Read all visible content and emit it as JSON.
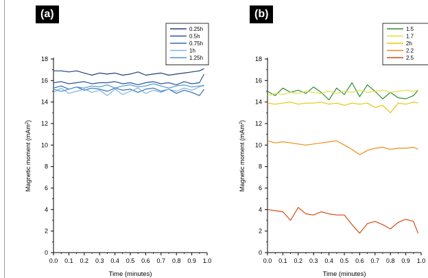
{
  "panels": [
    {
      "label": "(a)"
    },
    {
      "label": "(b)"
    }
  ],
  "chart_data": [
    {
      "type": "line",
      "title": "",
      "xlabel": "Time (minutes)",
      "ylabel": "Magnetic moment (mAm",
      "ylabel_sup": "2",
      "ylabel_close": ")",
      "xlim": [
        0,
        1.0
      ],
      "ylim": [
        0,
        18
      ],
      "xticks": [
        "0.0",
        "0.1",
        "0.2",
        "0.3",
        "0.4",
        "0.5",
        "0.6",
        "0.7",
        "0.8",
        "0.9",
        "1.0"
      ],
      "yticks": [
        "0",
        "2",
        "4",
        "6",
        "8",
        "10",
        "12",
        "14",
        "16",
        "18"
      ],
      "grid": false,
      "legend": "top-right",
      "series": [
        {
          "name": "0.25h",
          "color": "#1f3d7a",
          "x": [
            0,
            0.05,
            0.1,
            0.15,
            0.2,
            0.25,
            0.3,
            0.35,
            0.4,
            0.45,
            0.5,
            0.55,
            0.6,
            0.65,
            0.7,
            0.75,
            0.8,
            0.85,
            0.9,
            0.95,
            0.98
          ],
          "y": [
            16.9,
            16.9,
            16.8,
            16.9,
            16.7,
            16.5,
            16.7,
            16.6,
            16.7,
            16.5,
            16.6,
            16.8,
            16.5,
            16.6,
            16.7,
            16.5,
            16.6,
            16.7,
            16.8,
            16.9,
            17.1
          ]
        },
        {
          "name": "0.5h",
          "color": "#2a5592",
          "x": [
            0,
            0.05,
            0.1,
            0.15,
            0.2,
            0.25,
            0.3,
            0.35,
            0.4,
            0.45,
            0.5,
            0.55,
            0.6,
            0.65,
            0.7,
            0.75,
            0.8,
            0.85,
            0.9,
            0.95,
            0.98
          ],
          "y": [
            15.8,
            15.9,
            15.7,
            15.8,
            15.9,
            15.7,
            15.8,
            15.8,
            15.9,
            15.7,
            15.8,
            15.6,
            15.8,
            15.9,
            15.7,
            15.8,
            15.6,
            15.9,
            15.7,
            15.8,
            16.6
          ]
        },
        {
          "name": "0.75h",
          "color": "#2f6fb2",
          "x": [
            0,
            0.05,
            0.1,
            0.15,
            0.2,
            0.25,
            0.3,
            0.35,
            0.4,
            0.45,
            0.5,
            0.55,
            0.6,
            0.65,
            0.7,
            0.75,
            0.8,
            0.85,
            0.9,
            0.95,
            0.98
          ],
          "y": [
            15.3,
            15.5,
            15.2,
            15.4,
            15.1,
            15.3,
            15.2,
            15.0,
            15.3,
            15.1,
            15.2,
            14.9,
            15.2,
            15.3,
            15.0,
            15.2,
            14.8,
            15.1,
            14.9,
            14.6,
            15.2
          ]
        },
        {
          "name": "1h",
          "color": "#7fb2de",
          "x": [
            0,
            0.05,
            0.1,
            0.15,
            0.2,
            0.25,
            0.3,
            0.35,
            0.4,
            0.45,
            0.5,
            0.55,
            0.6,
            0.65,
            0.7,
            0.75,
            0.8,
            0.85,
            0.9,
            0.95,
            0.98
          ],
          "y": [
            14.9,
            15.3,
            14.8,
            15.0,
            15.2,
            14.9,
            15.1,
            14.6,
            15.2,
            14.7,
            15.0,
            15.3,
            14.8,
            15.1,
            14.9,
            15.2,
            15.0,
            15.3,
            15.1,
            15.4,
            15.6
          ]
        },
        {
          "name": "1.25h",
          "color": "#4f93d2",
          "x": [
            0,
            0.05,
            0.1,
            0.15,
            0.2,
            0.25,
            0.3,
            0.35,
            0.4,
            0.45,
            0.5,
            0.55,
            0.6,
            0.65,
            0.7,
            0.75,
            0.8,
            0.85,
            0.9,
            0.95,
            0.98
          ],
          "y": [
            15.2,
            15.0,
            15.2,
            15.4,
            15.3,
            15.5,
            15.4,
            15.6,
            15.3,
            15.5,
            15.6,
            15.4,
            15.5,
            15.7,
            15.5,
            15.3,
            15.5,
            15.6,
            15.4,
            15.5,
            15.5
          ]
        }
      ]
    },
    {
      "type": "line",
      "title": "",
      "xlabel": "Time (minutes)",
      "ylabel": "Magnetic moment (mAm",
      "ylabel_sup": "2",
      "ylabel_close": ")",
      "xlim": [
        0,
        1.0
      ],
      "ylim": [
        0,
        18
      ],
      "xticks": [
        "0.0",
        "0.1",
        "0.2",
        "0.3",
        "0.4",
        "0.5",
        "0.6",
        "0.7",
        "0.8",
        "0.9",
        "1.0"
      ],
      "yticks": [
        "0",
        "2",
        "4",
        "6",
        "8",
        "10",
        "12",
        "14",
        "16",
        "18"
      ],
      "grid": false,
      "legend": "top-right",
      "series": [
        {
          "name": "1.5",
          "color": "#2e8b2e",
          "x": [
            0,
            0.05,
            0.1,
            0.15,
            0.2,
            0.25,
            0.3,
            0.35,
            0.4,
            0.45,
            0.5,
            0.55,
            0.6,
            0.65,
            0.7,
            0.75,
            0.8,
            0.85,
            0.9,
            0.95,
            0.98
          ],
          "y": [
            15.0,
            14.6,
            15.3,
            14.9,
            15.1,
            14.8,
            15.4,
            14.9,
            14.2,
            15.3,
            14.7,
            15.8,
            14.5,
            15.6,
            15.0,
            14.3,
            14.9,
            14.4,
            14.3,
            14.6,
            15.1
          ]
        },
        {
          "name": "1.7",
          "color": "#e0e040",
          "x": [
            0,
            0.05,
            0.1,
            0.15,
            0.2,
            0.25,
            0.3,
            0.35,
            0.4,
            0.45,
            0.5,
            0.55,
            0.6,
            0.65,
            0.7,
            0.75,
            0.8,
            0.85,
            0.9,
            0.95,
            0.98
          ],
          "y": [
            14.6,
            14.8,
            14.7,
            14.9,
            14.8,
            15.0,
            14.9,
            14.8,
            15.0,
            14.8,
            15.0,
            14.9,
            15.1,
            14.9,
            15.0,
            15.1,
            14.9,
            15.0,
            15.1,
            15.0,
            15.1
          ]
        },
        {
          "name": "2h",
          "color": "#e6c800",
          "x": [
            0,
            0.05,
            0.1,
            0.15,
            0.2,
            0.25,
            0.3,
            0.35,
            0.4,
            0.45,
            0.5,
            0.55,
            0.6,
            0.65,
            0.7,
            0.75,
            0.8,
            0.85,
            0.9,
            0.95,
            0.98
          ],
          "y": [
            13.9,
            13.8,
            13.9,
            14.0,
            13.8,
            13.9,
            13.9,
            14.0,
            13.8,
            13.9,
            13.7,
            13.9,
            13.8,
            13.9,
            13.5,
            13.7,
            13.0,
            13.9,
            13.8,
            14.0,
            13.9
          ]
        },
        {
          "name": "2.2",
          "color": "#ef8c10",
          "x": [
            0,
            0.05,
            0.1,
            0.15,
            0.2,
            0.25,
            0.3,
            0.35,
            0.4,
            0.45,
            0.5,
            0.55,
            0.6,
            0.65,
            0.7,
            0.75,
            0.8,
            0.85,
            0.9,
            0.95,
            0.98
          ],
          "y": [
            10.4,
            10.2,
            10.3,
            10.2,
            10.1,
            10.0,
            10.1,
            10.2,
            10.3,
            10.4,
            10.0,
            9.6,
            9.1,
            9.5,
            9.7,
            9.8,
            9.6,
            9.7,
            9.7,
            9.8,
            9.6
          ]
        },
        {
          "name": "2.5",
          "color": "#d44a10",
          "x": [
            0,
            0.05,
            0.1,
            0.15,
            0.2,
            0.25,
            0.3,
            0.35,
            0.4,
            0.45,
            0.5,
            0.55,
            0.6,
            0.65,
            0.7,
            0.75,
            0.8,
            0.85,
            0.9,
            0.95,
            0.98
          ],
          "y": [
            4.0,
            3.9,
            3.8,
            3.0,
            4.2,
            3.6,
            3.5,
            3.8,
            3.6,
            3.5,
            3.5,
            2.6,
            1.8,
            2.7,
            2.9,
            2.6,
            2.2,
            2.8,
            3.1,
            2.9,
            1.8
          ]
        }
      ]
    }
  ]
}
